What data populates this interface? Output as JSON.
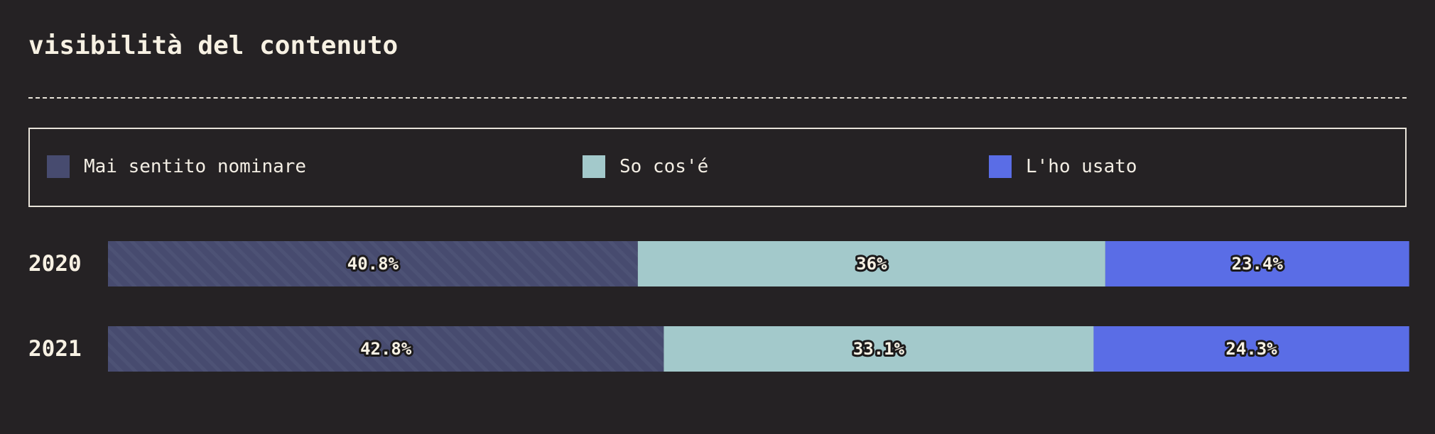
{
  "title": "visibilità del contenuto",
  "colors": {
    "background": "#252224",
    "mai_sentito": "#474b6f",
    "so_cose": "#a3c9cb",
    "usato": "#5a6de6"
  },
  "legend": [
    {
      "label": "Mai sentito nominare",
      "color": "#474b6f"
    },
    {
      "label": "So cos'é",
      "color": "#a3c9cb"
    },
    {
      "label": "L'ho usato",
      "color": "#5a6de6"
    }
  ],
  "chart_data": {
    "type": "bar",
    "orientation": "horizontal",
    "stacked": true,
    "normalized": true,
    "title": "visibilità del contenuto",
    "categories": [
      "2020",
      "2021"
    ],
    "series": [
      {
        "name": "Mai sentito nominare",
        "values": [
          40.8,
          42.8
        ],
        "labels": [
          "40.8%",
          "42.8%"
        ],
        "color": "#474b6f",
        "pattern": "diagonal-stripes"
      },
      {
        "name": "So cos'é",
        "values": [
          36,
          33.1
        ],
        "labels": [
          "36%",
          "33.1%"
        ],
        "color": "#a3c9cb"
      },
      {
        "name": "L'ho usato",
        "values": [
          23.4,
          24.3
        ],
        "labels": [
          "23.4%",
          "24.3%"
        ],
        "color": "#5a6de6"
      }
    ],
    "xlim": [
      0,
      100
    ],
    "legend_position": "top",
    "grid": false
  }
}
